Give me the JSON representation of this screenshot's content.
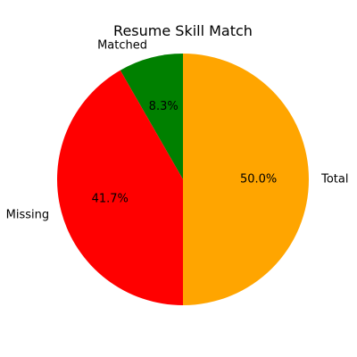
{
  "chart_data": {
    "type": "pie",
    "title": "Resume Skill Match",
    "start_angle_deg": 90,
    "direction": "counterclockwise",
    "slices": [
      {
        "label": "Matched",
        "value": 8.3,
        "pct_label": "8.3%",
        "color": "#008000"
      },
      {
        "label": "Missing",
        "value": 41.7,
        "pct_label": "41.7%",
        "color": "#ff0000"
      },
      {
        "label": "Total",
        "value": 50.0,
        "pct_label": "50.0%",
        "color": "#ffa500"
      }
    ]
  }
}
